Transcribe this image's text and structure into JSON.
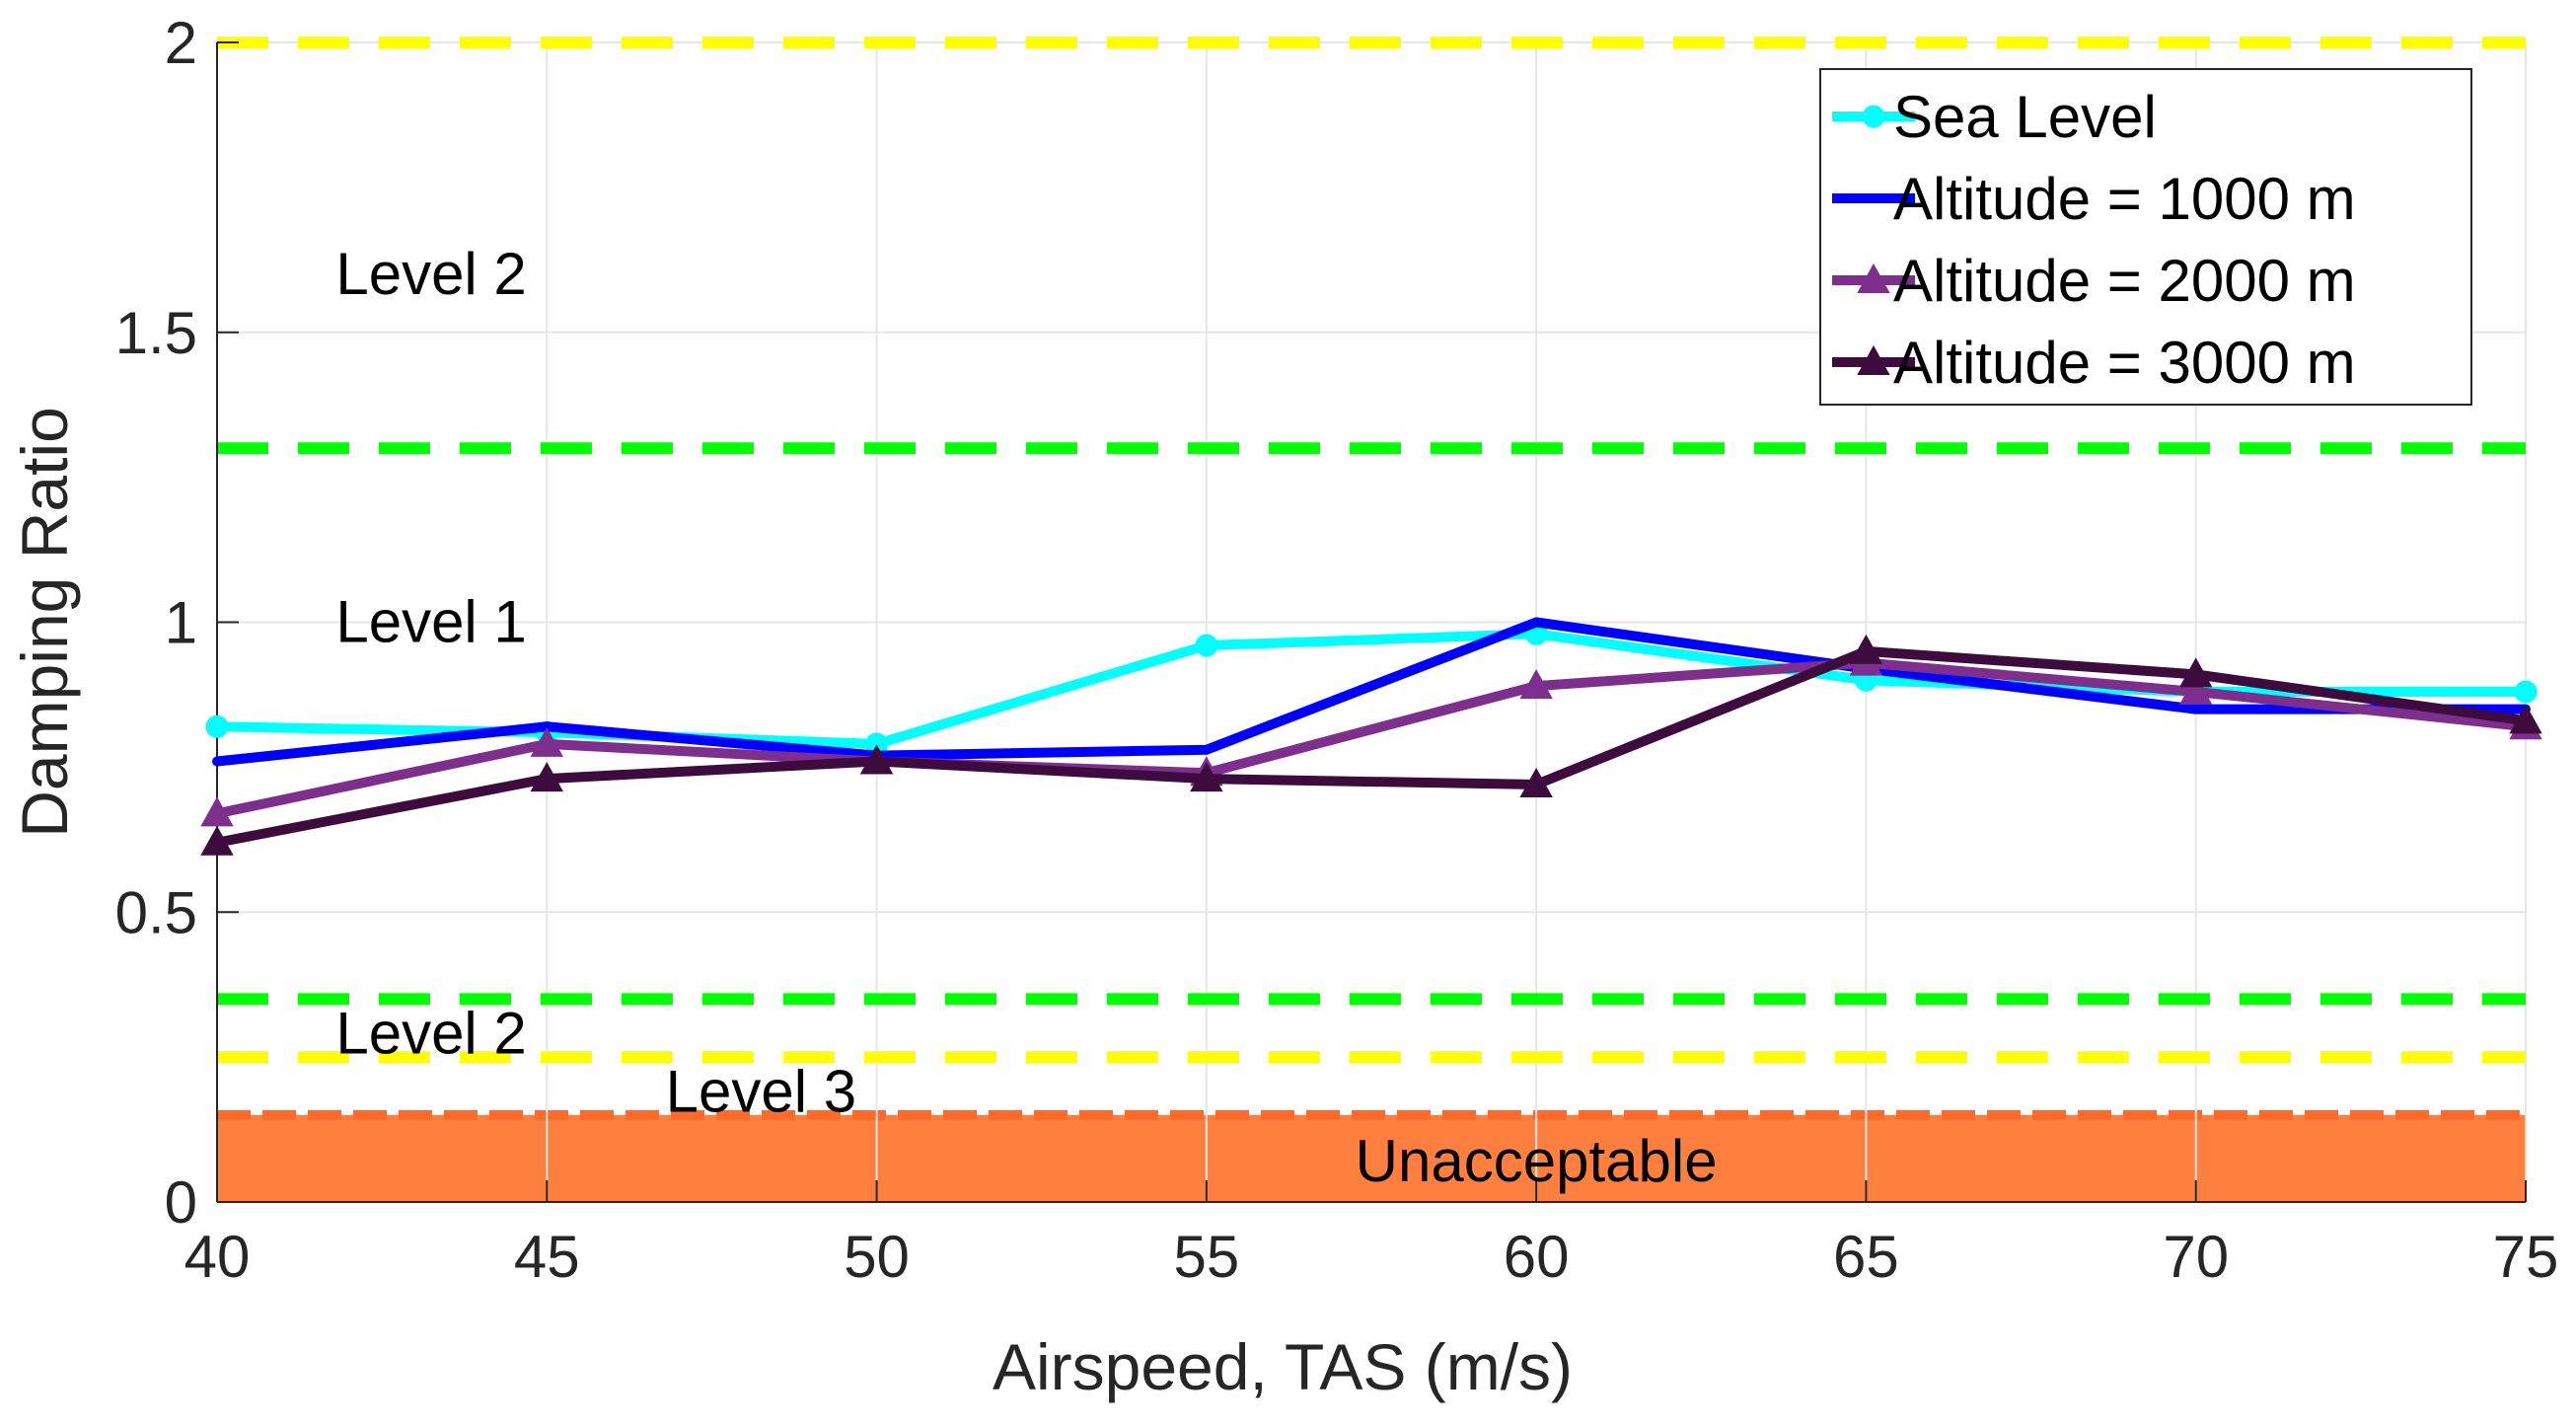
{
  "chart_data": {
    "type": "line",
    "title": "",
    "xlabel": "Airspeed, TAS (m/s)",
    "ylabel": "Damping Ratio",
    "xlim": [
      40,
      75
    ],
    "ylim": [
      0,
      2
    ],
    "xticks": [
      40,
      45,
      50,
      55,
      60,
      65,
      70,
      75
    ],
    "yticks": [
      0,
      0.5,
      1,
      1.5,
      2
    ],
    "ytick_labels": [
      "0",
      "0.5",
      "1",
      "1.5",
      "2"
    ],
    "grid": true,
    "legend_position": "top-right",
    "x": [
      40,
      45,
      50,
      55,
      60,
      65,
      70,
      75
    ],
    "series": [
      {
        "name": "Sea Level",
        "color": "#00ffff",
        "marker": "circle",
        "values": [
          0.82,
          0.81,
          0.79,
          0.96,
          0.98,
          0.9,
          0.88,
          0.88
        ]
      },
      {
        "name": "Altitude = 1000 m",
        "color": "#0000ff",
        "marker": "dot",
        "values": [
          0.76,
          0.82,
          0.77,
          0.78,
          1.0,
          0.92,
          0.85,
          0.85
        ]
      },
      {
        "name": "Altitude = 2000 m",
        "color": "#7e2f8e",
        "marker": "triangle",
        "values": [
          0.67,
          0.79,
          0.76,
          0.74,
          0.89,
          0.93,
          0.88,
          0.82
        ]
      },
      {
        "name": "Altitude = 3000 m",
        "color": "#3d0b3d",
        "marker": "triangle",
        "values": [
          0.62,
          0.73,
          0.76,
          0.73,
          0.72,
          0.95,
          0.91,
          0.83
        ]
      }
    ],
    "reference_lines": [
      {
        "y": 2.0,
        "color": "#ffff00",
        "style": "dashed"
      },
      {
        "y": 1.3,
        "color": "#00ff00",
        "style": "dashed"
      },
      {
        "y": 0.35,
        "color": "#00ff00",
        "style": "dashed"
      },
      {
        "y": 0.25,
        "color": "#ffff00",
        "style": "dashed"
      }
    ],
    "unacceptable_region": {
      "from": 0,
      "to": 0.15,
      "color": "#ff7f3f",
      "edge_color": "#ff6a2a"
    },
    "annotations": [
      {
        "text": "Level 2",
        "x": 41.8,
        "y": 1.6
      },
      {
        "text": "Level 1",
        "x": 41.8,
        "y": 1.0
      },
      {
        "text": "Level 2",
        "x": 41.8,
        "y": 0.29
      },
      {
        "text": "Level 3",
        "x": 46.8,
        "y": 0.19
      },
      {
        "text": "Unacceptable",
        "x": 60.0,
        "y": 0.07
      }
    ]
  }
}
